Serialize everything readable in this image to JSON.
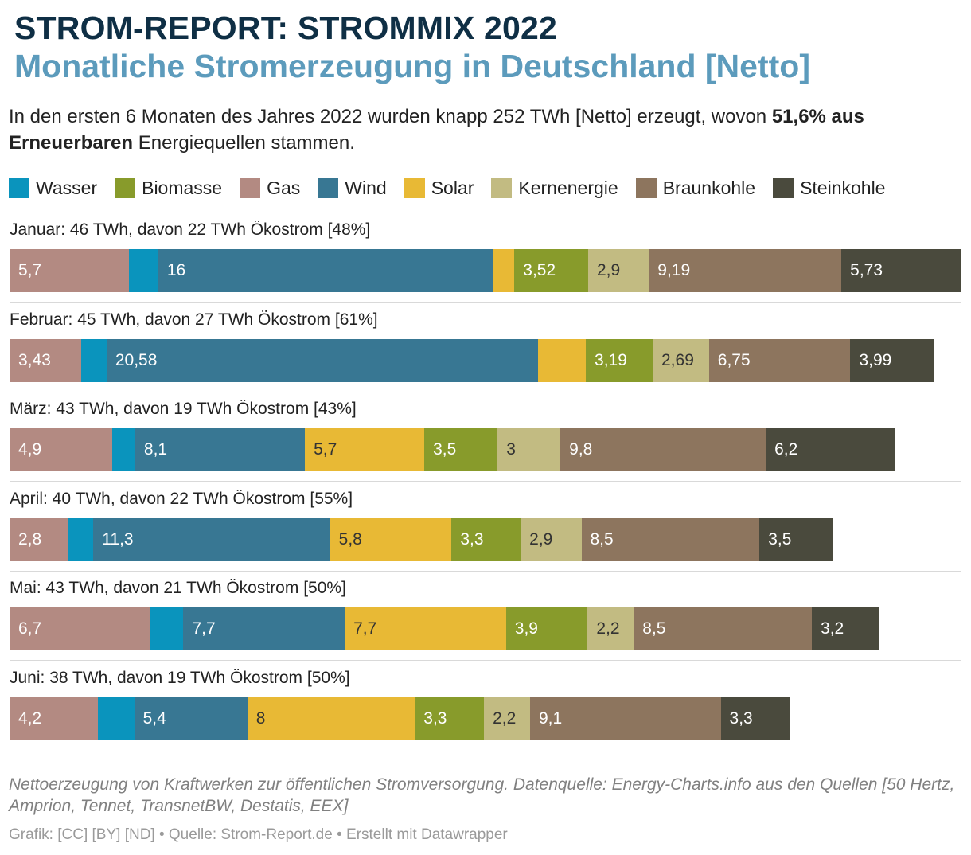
{
  "header": {
    "title": "STROM-REPORT: STROMMIX 2022",
    "subtitle": "Monatliche Stromerzeugung in Deutschland [Netto]"
  },
  "intro": {
    "part1": "In den ersten 6 Monaten des Jahres 2022 wurden knapp 252 TWh [Netto] erzeugt, wovon ",
    "bold": "51,6% aus Erneuerbaren",
    "part2": " Energiequellen stammen."
  },
  "legend": [
    {
      "label": "Wasser",
      "color": "#0a94bd"
    },
    {
      "label": "Biomasse",
      "color": "#889b2b"
    },
    {
      "label": "Gas",
      "color": "#b38a82"
    },
    {
      "label": "Wind",
      "color": "#387793"
    },
    {
      "label": "Solar",
      "color": "#e8b935"
    },
    {
      "label": "Kernenergie",
      "color": "#c2bb82"
    },
    {
      "label": "Braunkohle",
      "color": "#8d755e"
    },
    {
      "label": "Steinkohle",
      "color": "#4a4a3d"
    }
  ],
  "chart_data": {
    "type": "bar",
    "orientation": "horizontal",
    "stacked": true,
    "unit": "TWh",
    "segment_order": [
      "Gas",
      "Wasser",
      "Wind",
      "Solar",
      "Biomasse",
      "Kernenergie",
      "Braunkohle",
      "Steinkohle"
    ],
    "segment_colors": {
      "Gas": "#b38a82",
      "Wasser": "#0a94bd",
      "Wind": "#387793",
      "Solar": "#e8b935",
      "Biomasse": "#889b2b",
      "Kernenergie": "#c2bb82",
      "Braunkohle": "#8d755e",
      "Steinkohle": "#4a4a3d"
    },
    "label_dark_text": [
      "Solar",
      "Kernenergie"
    ],
    "rows": [
      {
        "label": "Januar: 46 TWh, davon 22 TWh Ökostrom [48%]",
        "segments": [
          {
            "name": "Gas",
            "value": 5.7,
            "label": "5,7"
          },
          {
            "name": "Wasser",
            "value": 1.4,
            "label": ""
          },
          {
            "name": "Wind",
            "value": 16,
            "label": "16"
          },
          {
            "name": "Solar",
            "value": 1.0,
            "label": ""
          },
          {
            "name": "Biomasse",
            "value": 3.52,
            "label": "3,52"
          },
          {
            "name": "Kernenergie",
            "value": 2.9,
            "label": "2,9"
          },
          {
            "name": "Braunkohle",
            "value": 9.19,
            "label": "9,19"
          },
          {
            "name": "Steinkohle",
            "value": 5.73,
            "label": "5,73"
          }
        ]
      },
      {
        "label": "Februar: 45 TWh, davon 27 TWh Ökostrom [61%]",
        "segments": [
          {
            "name": "Gas",
            "value": 3.43,
            "label": "3,43"
          },
          {
            "name": "Wasser",
            "value": 1.2,
            "label": ""
          },
          {
            "name": "Wind",
            "value": 20.58,
            "label": "20,58"
          },
          {
            "name": "Solar",
            "value": 2.3,
            "label": ""
          },
          {
            "name": "Biomasse",
            "value": 3.19,
            "label": "3,19"
          },
          {
            "name": "Kernenergie",
            "value": 2.69,
            "label": "2,69"
          },
          {
            "name": "Braunkohle",
            "value": 6.75,
            "label": "6,75"
          },
          {
            "name": "Steinkohle",
            "value": 3.99,
            "label": "3,99"
          }
        ]
      },
      {
        "label": "März: 43 TWh, davon 19 TWh Ökostrom [43%]",
        "segments": [
          {
            "name": "Gas",
            "value": 4.9,
            "label": "4,9"
          },
          {
            "name": "Wasser",
            "value": 1.1,
            "label": ""
          },
          {
            "name": "Wind",
            "value": 8.1,
            "label": "8,1"
          },
          {
            "name": "Solar",
            "value": 5.7,
            "label": "5,7"
          },
          {
            "name": "Biomasse",
            "value": 3.5,
            "label": "3,5"
          },
          {
            "name": "Kernenergie",
            "value": 3,
            "label": "3"
          },
          {
            "name": "Braunkohle",
            "value": 9.8,
            "label": "9,8"
          },
          {
            "name": "Steinkohle",
            "value": 6.2,
            "label": "6,2"
          }
        ]
      },
      {
        "label": "April: 40 TWh, davon 22 TWh Ökostrom [55%]",
        "segments": [
          {
            "name": "Gas",
            "value": 2.8,
            "label": "2,8"
          },
          {
            "name": "Wasser",
            "value": 1.2,
            "label": ""
          },
          {
            "name": "Wind",
            "value": 11.3,
            "label": "11,3"
          },
          {
            "name": "Solar",
            "value": 5.8,
            "label": "5,8"
          },
          {
            "name": "Biomasse",
            "value": 3.3,
            "label": "3,3"
          },
          {
            "name": "Kernenergie",
            "value": 2.9,
            "label": "2,9"
          },
          {
            "name": "Braunkohle",
            "value": 8.5,
            "label": "8,5"
          },
          {
            "name": "Steinkohle",
            "value": 3.5,
            "label": "3,5"
          }
        ]
      },
      {
        "label": "Mai: 43 TWh, davon 21 TWh Ökostrom [50%]",
        "segments": [
          {
            "name": "Gas",
            "value": 6.7,
            "label": "6,7"
          },
          {
            "name": "Wasser",
            "value": 1.6,
            "label": ""
          },
          {
            "name": "Wind",
            "value": 7.7,
            "label": "7,7"
          },
          {
            "name": "Solar",
            "value": 7.7,
            "label": "7,7"
          },
          {
            "name": "Biomasse",
            "value": 3.9,
            "label": "3,9"
          },
          {
            "name": "Kernenergie",
            "value": 2.2,
            "label": "2,2"
          },
          {
            "name": "Braunkohle",
            "value": 8.5,
            "label": "8,5"
          },
          {
            "name": "Steinkohle",
            "value": 3.2,
            "label": "3,2"
          }
        ]
      },
      {
        "label": "Juni: 38 TWh, davon 19 TWh Ökostrom [50%]",
        "segments": [
          {
            "name": "Gas",
            "value": 4.2,
            "label": "4,2"
          },
          {
            "name": "Wasser",
            "value": 1.75,
            "label": ""
          },
          {
            "name": "Wind",
            "value": 5.4,
            "label": "5,4"
          },
          {
            "name": "Solar",
            "value": 8,
            "label": "8"
          },
          {
            "name": "Biomasse",
            "value": 3.3,
            "label": "3,3"
          },
          {
            "name": "Kernenergie",
            "value": 2.2,
            "label": "2,2"
          },
          {
            "name": "Braunkohle",
            "value": 9.1,
            "label": "9,1"
          },
          {
            "name": "Steinkohle",
            "value": 3.3,
            "label": "3,3"
          }
        ]
      }
    ]
  },
  "footer": {
    "note": "Nettoerzeugung von Kraftwerken zur öffentlichen Stromversorgung. Datenquelle: Energy-Charts.info aus den Quellen [50 Hertz, Amprion, Tennet, TransnetBW, Destatis, EEX]",
    "credit": "Grafik: [CC] [BY] [ND] • Quelle: Strom-Report.de • Erstellt mit Datawrapper"
  }
}
